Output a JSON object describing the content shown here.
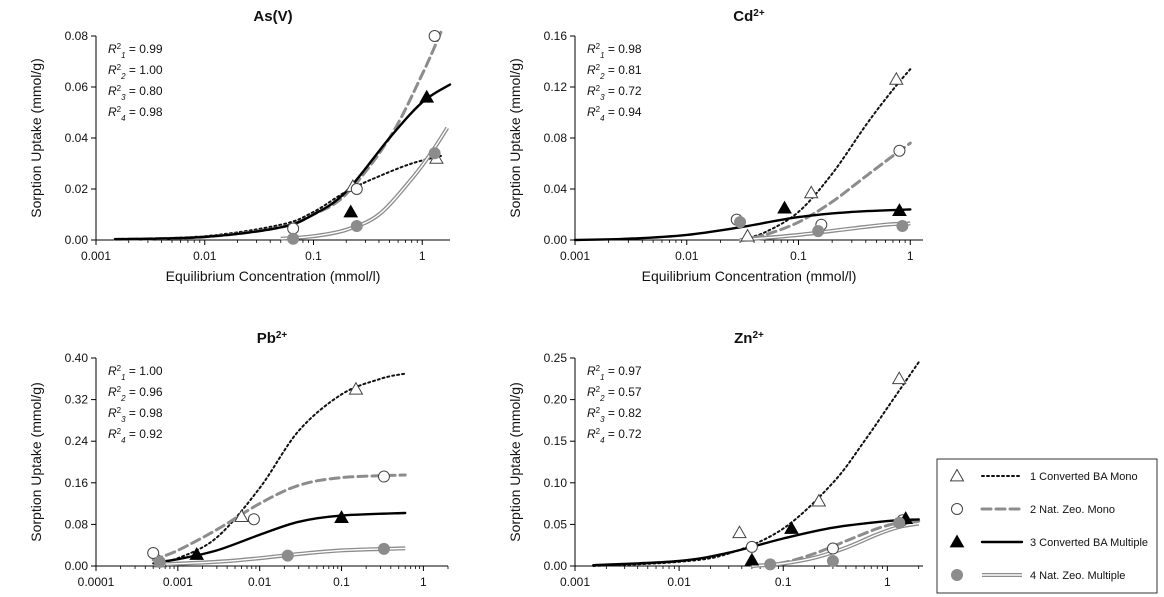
{
  "legend": {
    "entries": [
      {
        "label": "1 Converted BA Mono",
        "marker": "triangle-open",
        "line": "dotted",
        "color": "#111111"
      },
      {
        "label": "2 Nat. Zeo. Mono",
        "marker": "circle-open",
        "line": "dashed",
        "color": "#8c8c8c"
      },
      {
        "label": "3 Converted BA Multiple",
        "marker": "triangle-filled",
        "line": "solid",
        "color": "#000000"
      },
      {
        "label": "4 Nat. Zeo. Multiple",
        "marker": "circle-filled",
        "line": "double",
        "color": "#8c8c8c"
      }
    ]
  },
  "chart_data": [
    {
      "type": "scatter",
      "title": "As(V)",
      "xlabel": "Equilibrium Concentration (mmol/l)",
      "ylabel": "Sorption Uptake (mmol/g)",
      "xscale": "log",
      "xlim": [
        0.001,
        1.8
      ],
      "ylim": [
        0,
        0.08
      ],
      "xticks": [
        0.001,
        0.01,
        0.1,
        1
      ],
      "xticklabels": [
        "0.001",
        "0.01",
        "0.1",
        "1"
      ],
      "yticks": [
        0,
        0.02,
        0.04,
        0.06,
        0.08
      ],
      "yticklabels": [
        "0.00",
        "0.02",
        "0.04",
        "0.06",
        "0.08"
      ],
      "r2": [
        {
          "base": "R",
          "sup": "2",
          "sub": "1",
          "value": "0.99"
        },
        {
          "base": "R",
          "sup": "2",
          "sub": "2",
          "value": "1.00"
        },
        {
          "base": "R",
          "sup": "2",
          "sub": "3",
          "value": "0.80"
        },
        {
          "base": "R",
          "sup": "2",
          "sub": "4",
          "value": "0.98"
        }
      ],
      "series": [
        {
          "name": "1 Converted BA Mono",
          "points": [
            [
              0.23,
              0.021
            ],
            [
              1.35,
              0.032
            ]
          ],
          "curve": [
            [
              0.0015,
              0.0003
            ],
            [
              0.01,
              0.0015
            ],
            [
              0.05,
              0.006
            ],
            [
              0.1,
              0.011
            ],
            [
              0.2,
              0.019
            ],
            [
              0.4,
              0.025
            ],
            [
              0.8,
              0.03
            ],
            [
              1.5,
              0.033
            ]
          ]
        },
        {
          "name": "2 Nat. Zeo. Mono",
          "points": [
            [
              0.065,
              0.0045
            ],
            [
              0.25,
              0.02
            ],
            [
              1.3,
              0.08
            ]
          ],
          "curve": [
            [
              0.0015,
              0.0003
            ],
            [
              0.01,
              0.0012
            ],
            [
              0.05,
              0.005
            ],
            [
              0.1,
              0.01
            ],
            [
              0.2,
              0.018
            ],
            [
              0.5,
              0.04
            ],
            [
              1.0,
              0.065
            ],
            [
              1.5,
              0.082
            ]
          ]
        },
        {
          "name": "3 Converted BA Multiple",
          "points": [
            [
              0.22,
              0.011
            ],
            [
              1.1,
              0.056
            ]
          ],
          "curve": [
            [
              0.0015,
              0.0003
            ],
            [
              0.01,
              0.0012
            ],
            [
              0.05,
              0.005
            ],
            [
              0.1,
              0.01
            ],
            [
              0.2,
              0.019
            ],
            [
              0.5,
              0.04
            ],
            [
              1.0,
              0.054
            ],
            [
              1.8,
              0.061
            ]
          ]
        },
        {
          "name": "4 Nat. Zeo. Multiple",
          "points": [
            [
              0.065,
              0.0005
            ],
            [
              0.25,
              0.0055
            ],
            [
              1.3,
              0.034
            ]
          ],
          "curve": [
            [
              0.05,
              0.0005
            ],
            [
              0.1,
              0.0015
            ],
            [
              0.2,
              0.004
            ],
            [
              0.4,
              0.01
            ],
            [
              0.8,
              0.024
            ],
            [
              1.2,
              0.034
            ],
            [
              1.7,
              0.044
            ]
          ]
        }
      ]
    },
    {
      "type": "scatter",
      "title": "Cd2+",
      "xlabel": "Equilibrium Concentration (mmol/l)",
      "ylabel": "Sorption Uptake (mmol/g)",
      "xscale": "log",
      "xlim": [
        0.001,
        1.3
      ],
      "ylim": [
        0,
        0.16
      ],
      "xticks": [
        0.001,
        0.01,
        0.1,
        1
      ],
      "xticklabels": [
        "0.001",
        "0.01",
        "0.1",
        "1"
      ],
      "yticks": [
        0,
        0.04,
        0.08,
        0.12,
        0.16
      ],
      "yticklabels": [
        "0.00",
        "0.04",
        "0.08",
        "0.12",
        "0.16"
      ],
      "r2": [
        {
          "base": "R",
          "sup": "2",
          "sub": "1",
          "value": "0.98"
        },
        {
          "base": "R",
          "sup": "2",
          "sub": "2",
          "value": "0.81"
        },
        {
          "base": "R",
          "sup": "2",
          "sub": "3",
          "value": "0.72"
        },
        {
          "base": "R",
          "sup": "2",
          "sub": "4",
          "value": "0.94"
        }
      ],
      "series": [
        {
          "name": "1 Converted BA Mono",
          "points": [
            [
              0.035,
              0.003
            ],
            [
              0.13,
              0.037
            ],
            [
              0.75,
              0.126
            ]
          ],
          "curve": [
            [
              0.03,
              0.0
            ],
            [
              0.05,
              0.006
            ],
            [
              0.1,
              0.022
            ],
            [
              0.2,
              0.052
            ],
            [
              0.4,
              0.09
            ],
            [
              0.7,
              0.118
            ],
            [
              1.0,
              0.134
            ]
          ]
        },
        {
          "name": "2 Nat. Zeo. Mono",
          "points": [
            [
              0.028,
              0.016
            ],
            [
              0.16,
              0.012
            ],
            [
              0.8,
              0.07
            ]
          ],
          "curve": [
            [
              0.03,
              0.0
            ],
            [
              0.05,
              0.004
            ],
            [
              0.1,
              0.014
            ],
            [
              0.2,
              0.03
            ],
            [
              0.4,
              0.05
            ],
            [
              0.7,
              0.066
            ],
            [
              1.0,
              0.076
            ]
          ]
        },
        {
          "name": "3 Converted BA Multiple",
          "points": [
            [
              0.075,
              0.025
            ],
            [
              0.8,
              0.023
            ]
          ],
          "curve": [
            [
              0.001,
              0.0
            ],
            [
              0.003,
              0.001
            ],
            [
              0.01,
              0.004
            ],
            [
              0.03,
              0.01
            ],
            [
              0.1,
              0.018
            ],
            [
              0.3,
              0.022
            ],
            [
              1.0,
              0.024
            ]
          ]
        },
        {
          "name": "4 Nat. Zeo. Multiple",
          "points": [
            [
              0.03,
              0.014
            ],
            [
              0.15,
              0.007
            ],
            [
              0.85,
              0.011
            ]
          ],
          "curve": [
            [
              0.03,
              0.0
            ],
            [
              0.1,
              0.004
            ],
            [
              0.3,
              0.009
            ],
            [
              0.6,
              0.012
            ],
            [
              1.0,
              0.013
            ]
          ]
        }
      ]
    },
    {
      "type": "scatter",
      "title": "Pb2+",
      "xlabel": "Equilibrium Concentration (mmol/l)",
      "ylabel": "Sorption Uptake (mmol/g)",
      "xscale": "log",
      "xlim": [
        0.0001,
        2.0
      ],
      "ylim": [
        0,
        0.4
      ],
      "xticks": [
        0.0001,
        0.001,
        0.01,
        0.1,
        1
      ],
      "xticklabels": [
        "0.0001",
        "0.001",
        "0.01",
        "0.1",
        "1"
      ],
      "yticks": [
        0,
        0.08,
        0.16,
        0.24,
        0.32,
        0.4
      ],
      "yticklabels": [
        "0.00",
        "0.08",
        "0.16",
        "0.24",
        "0.32",
        "0.40"
      ],
      "r2": [
        {
          "base": "R",
          "sup": "2",
          "sub": "1",
          "value": "1.00"
        },
        {
          "base": "R",
          "sup": "2",
          "sub": "2",
          "value": "0.96"
        },
        {
          "base": "R",
          "sup": "2",
          "sub": "3",
          "value": "0.98"
        },
        {
          "base": "R",
          "sup": "2",
          "sub": "4",
          "value": "0.92"
        }
      ],
      "series": [
        {
          "name": "1 Converted BA Mono",
          "points": [
            [
              0.0006,
              0.008
            ],
            [
              0.006,
              0.095
            ],
            [
              0.15,
              0.34
            ]
          ],
          "curve": [
            [
              0.0005,
              0.005
            ],
            [
              0.001,
              0.015
            ],
            [
              0.003,
              0.055
            ],
            [
              0.01,
              0.15
            ],
            [
              0.03,
              0.26
            ],
            [
              0.1,
              0.33
            ],
            [
              0.3,
              0.36
            ],
            [
              0.6,
              0.37
            ]
          ]
        },
        {
          "name": "2 Nat. Zeo. Mono",
          "points": [
            [
              0.0005,
              0.025
            ],
            [
              0.0085,
              0.09
            ],
            [
              0.33,
              0.172
            ]
          ],
          "curve": [
            [
              0.0005,
              0.012
            ],
            [
              0.001,
              0.03
            ],
            [
              0.003,
              0.07
            ],
            [
              0.01,
              0.12
            ],
            [
              0.03,
              0.155
            ],
            [
              0.1,
              0.17
            ],
            [
              0.6,
              0.175
            ]
          ]
        },
        {
          "name": "3 Converted BA Multiple",
          "points": [
            [
              0.0017,
              0.022
            ],
            [
              0.1,
              0.093
            ]
          ],
          "curve": [
            [
              0.0006,
              0.008
            ],
            [
              0.001,
              0.013
            ],
            [
              0.003,
              0.03
            ],
            [
              0.01,
              0.06
            ],
            [
              0.03,
              0.085
            ],
            [
              0.1,
              0.097
            ],
            [
              0.6,
              0.102
            ]
          ]
        },
        {
          "name": "4 Nat. Zeo. Multiple",
          "points": [
            [
              0.0006,
              0.008
            ],
            [
              0.022,
              0.02
            ],
            [
              0.33,
              0.033
            ]
          ],
          "curve": [
            [
              0.0006,
              0.003
            ],
            [
              0.003,
              0.008
            ],
            [
              0.01,
              0.015
            ],
            [
              0.03,
              0.023
            ],
            [
              0.1,
              0.03
            ],
            [
              0.6,
              0.034
            ]
          ]
        }
      ]
    },
    {
      "type": "scatter",
      "title": "Zn2+",
      "xlabel": "Equilibrium Concentration (mmol/l)",
      "ylabel": "Sorption Uptake (mmol/g)",
      "xscale": "log",
      "xlim": [
        0.001,
        2.2
      ],
      "ylim": [
        0,
        0.25
      ],
      "xticks": [
        0.001,
        0.01,
        0.1,
        1
      ],
      "xticklabels": [
        "0.001",
        "0.01",
        "0.1",
        "1"
      ],
      "yticks": [
        0,
        0.05,
        0.1,
        0.15,
        0.2,
        0.25
      ],
      "yticklabels": [
        "0.00",
        "0.05",
        "0.10",
        "0.15",
        "0.20",
        "0.25"
      ],
      "r2": [
        {
          "base": "R",
          "sup": "2",
          "sub": "1",
          "value": "0.97"
        },
        {
          "base": "R",
          "sup": "2",
          "sub": "2",
          "value": "0.57"
        },
        {
          "base": "R",
          "sup": "2",
          "sub": "3",
          "value": "0.82"
        },
        {
          "base": "R",
          "sup": "2",
          "sub": "4",
          "value": "0.72"
        }
      ],
      "series": [
        {
          "name": "1 Converted BA Mono",
          "points": [
            [
              0.038,
              0.04
            ],
            [
              0.22,
              0.078
            ],
            [
              1.3,
              0.225
            ]
          ],
          "curve": [
            [
              0.0015,
              0.0
            ],
            [
              0.01,
              0.005
            ],
            [
              0.03,
              0.015
            ],
            [
              0.1,
              0.045
            ],
            [
              0.3,
              0.1
            ],
            [
              0.6,
              0.15
            ],
            [
              1.0,
              0.19
            ],
            [
              2.0,
              0.245
            ]
          ]
        },
        {
          "name": "2 Nat. Zeo. Mono",
          "points": [
            [
              0.05,
              0.023
            ],
            [
              0.3,
              0.021
            ],
            [
              1.4,
              0.055
            ]
          ],
          "curve": [
            [
              0.05,
              0.0
            ],
            [
              0.1,
              0.004
            ],
            [
              0.2,
              0.015
            ],
            [
              0.4,
              0.03
            ],
            [
              0.8,
              0.045
            ],
            [
              1.3,
              0.052
            ],
            [
              2.0,
              0.054
            ]
          ]
        },
        {
          "name": "3 Converted BA Multiple",
          "points": [
            [
              0.05,
              0.007
            ],
            [
              0.12,
              0.045
            ],
            [
              1.5,
              0.057
            ]
          ],
          "curve": [
            [
              0.0015,
              0.001
            ],
            [
              0.01,
              0.006
            ],
            [
              0.03,
              0.016
            ],
            [
              0.1,
              0.033
            ],
            [
              0.3,
              0.046
            ],
            [
              1.0,
              0.054
            ],
            [
              2.0,
              0.056
            ]
          ]
        },
        {
          "name": "4 Nat. Zeo. Multiple",
          "points": [
            [
              0.075,
              0.002
            ],
            [
              0.3,
              0.006
            ],
            [
              1.3,
              0.052
            ]
          ],
          "curve": [
            [
              0.05,
              0.0
            ],
            [
              0.1,
              0.003
            ],
            [
              0.2,
              0.01
            ],
            [
              0.4,
              0.022
            ],
            [
              0.8,
              0.038
            ],
            [
              1.3,
              0.047
            ],
            [
              2.0,
              0.051
            ]
          ]
        }
      ]
    }
  ]
}
